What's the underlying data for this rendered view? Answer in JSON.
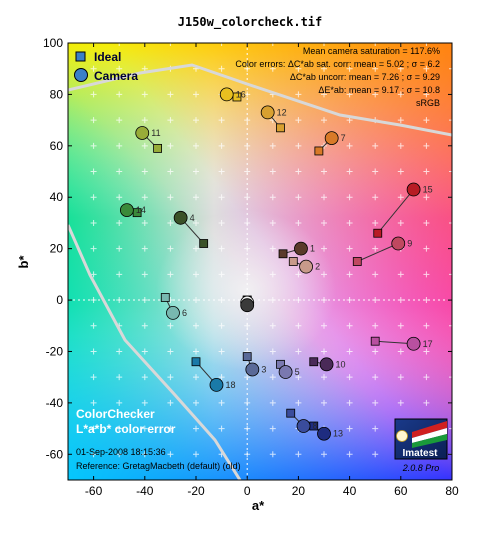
{
  "title": "J150w_colorcheck.tif",
  "colors": {
    "accent": "#3a7fc8",
    "panel_dark": "#0b2a66"
  },
  "chart_data": {
    "type": "scatter",
    "xlabel": "a*",
    "ylabel": "b*",
    "xlim": [
      -70,
      80
    ],
    "ylim": [
      -70,
      100
    ],
    "xticks": [
      "-60",
      "-40",
      "-20",
      "0",
      "20",
      "40",
      "60",
      "80"
    ],
    "yticks": [
      "-60",
      "-40",
      "-20",
      "0",
      "20",
      "40",
      "60",
      "80",
      "100"
    ],
    "legend": {
      "ideal": "Ideal",
      "camera": "Camera",
      "position": "top-left"
    },
    "stats": [
      "Mean camera saturation = 117.6%",
      "Color errors: ΔC*ab sat. corr: mean = 5.02 ; σ = 6.2",
      "ΔC*ab uncorr: mean = 7.26 ; σ = 9.29",
      "ΔE*ab: mean = 9.17 ; σ = 10.8",
      "sRGB"
    ],
    "caption": {
      "name": "ColorChecker",
      "subtitle": "L*a*b* color error",
      "date": "01-Sep-2008 18:15:36",
      "reference": "Reference: GretagMacbeth (default) (old)"
    },
    "logo": {
      "name": "Imatest",
      "version": "2.0.8 Pro"
    },
    "patches": [
      {
        "label": "1",
        "ideal": [
          14,
          18
        ],
        "camera": [
          21,
          20
        ],
        "color": "#5a3a2a"
      },
      {
        "label": "2",
        "ideal": [
          18,
          15
        ],
        "camera": [
          23,
          13
        ],
        "color": "#c89a8a"
      },
      {
        "label": "3",
        "ideal": [
          0,
          -22
        ],
        "camera": [
          2,
          -27
        ],
        "color": "#5a6a98"
      },
      {
        "label": "4",
        "ideal": [
          -17,
          22
        ],
        "camera": [
          -26,
          32
        ],
        "color": "#3a5228"
      },
      {
        "label": "5",
        "ideal": [
          13,
          -25
        ],
        "camera": [
          15,
          -28
        ],
        "color": "#7a78b0"
      },
      {
        "label": "6",
        "ideal": [
          -32,
          1
        ],
        "camera": [
          -29,
          -5
        ],
        "color": "#78b8b0"
      },
      {
        "label": "7",
        "ideal": [
          28,
          58
        ],
        "camera": [
          33,
          63
        ],
        "color": "#d87a28"
      },
      {
        "label": "8",
        "ideal": [
          17,
          -44
        ],
        "camera": [
          22,
          -49
        ],
        "color": "#3a4c9c"
      },
      {
        "label": "9",
        "ideal": [
          43,
          15
        ],
        "camera": [
          59,
          22
        ],
        "color": "#c04860"
      },
      {
        "label": "10",
        "ideal": [
          26,
          -24
        ],
        "camera": [
          31,
          -25
        ],
        "color": "#4a2a58"
      },
      {
        "label": "11",
        "ideal": [
          -35,
          59
        ],
        "camera": [
          -41,
          65
        ],
        "color": "#98ac38"
      },
      {
        "label": "12",
        "ideal": [
          13,
          67
        ],
        "camera": [
          8,
          73
        ],
        "color": "#d8a030"
      },
      {
        "label": "13",
        "ideal": [
          26,
          -49
        ],
        "camera": [
          30,
          -52
        ],
        "color": "#1e2c80"
      },
      {
        "label": "14",
        "ideal": [
          -43,
          34
        ],
        "camera": [
          -47,
          35
        ],
        "color": "#3a8a3a"
      },
      {
        "label": "15",
        "ideal": [
          51,
          26
        ],
        "camera": [
          65,
          43
        ],
        "color": "#b81c24"
      },
      {
        "label": "16",
        "ideal": [
          -4,
          79
        ],
        "camera": [
          -8,
          80
        ],
        "color": "#e8c020"
      },
      {
        "label": "17",
        "ideal": [
          50,
          -16
        ],
        "camera": [
          65,
          -17
        ],
        "color": "#b850a0"
      },
      {
        "label": "18",
        "ideal": [
          -20,
          -24
        ],
        "camera": [
          -12,
          -33
        ],
        "color": "#1a7aa8"
      },
      {
        "label": "",
        "ideal": [
          0,
          0
        ],
        "camera": [
          0,
          -1
        ],
        "color": "#f2f2f2"
      },
      {
        "label": "",
        "ideal": [
          0,
          0
        ],
        "camera": [
          0,
          -2
        ],
        "color": "#3a3a3a"
      }
    ]
  }
}
